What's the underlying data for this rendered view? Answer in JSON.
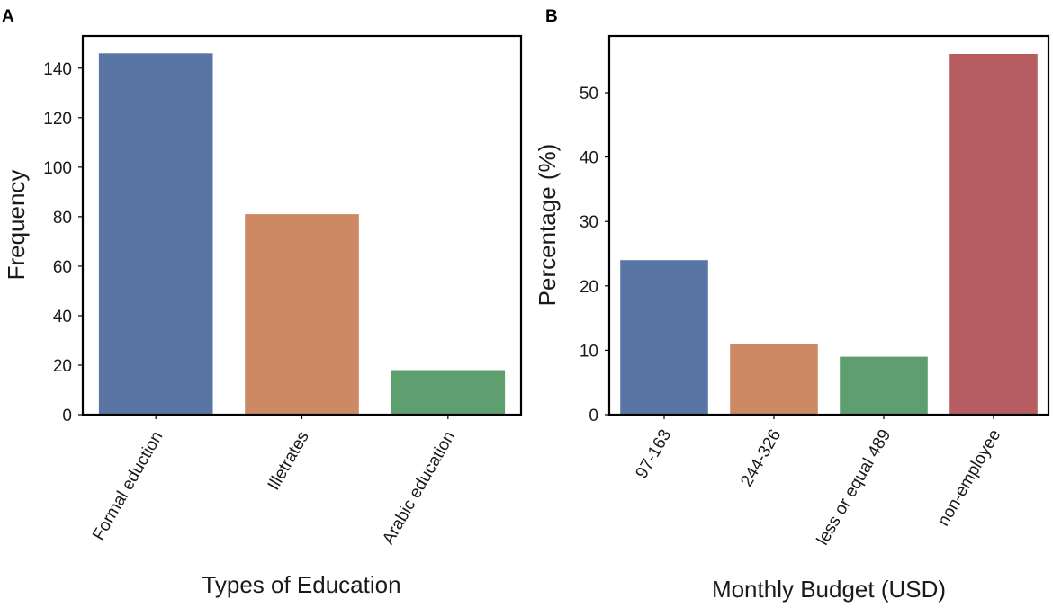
{
  "chart_data": [
    {
      "type": "bar",
      "panel_label": "A",
      "title": "",
      "categories": [
        "Formal eduction",
        "Illetrates",
        "Arabic education"
      ],
      "values": [
        146,
        81,
        18
      ],
      "colors": [
        "#5975a4",
        "#cc8963",
        "#5f9e6e"
      ],
      "xlabel": "Types of Education",
      "ylabel": "Frequency",
      "ylim": [
        0,
        153
      ],
      "yticks": [
        0,
        20,
        40,
        60,
        80,
        100,
        120,
        140
      ],
      "grid": false
    },
    {
      "type": "bar",
      "panel_label": "B",
      "title": "",
      "categories": [
        "97-163",
        "244-326",
        "less or equal 489",
        "non-employee"
      ],
      "values": [
        24,
        11,
        9,
        56
      ],
      "colors": [
        "#5975a4",
        "#cc8963",
        "#5f9e6e",
        "#b55d60"
      ],
      "xlabel": "Monthly Budget (USD)",
      "ylabel": "Percentage (%)",
      "ylim": [
        0,
        58.8
      ],
      "yticks": [
        0,
        10,
        20,
        30,
        40,
        50
      ],
      "grid": false
    }
  ]
}
